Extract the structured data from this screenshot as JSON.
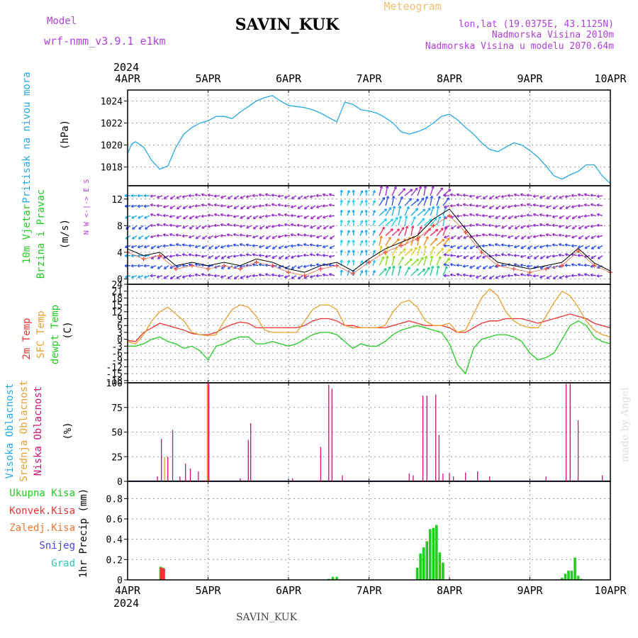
{
  "header": {
    "model_label": "Model",
    "model_value": "wrf-nmm_v3.9.1  e1km",
    "station_title": "SAVIN_KUK",
    "meteogram_label": "Meteogram",
    "coords": "lon,lat (19.0375E, 43.1125N)",
    "altitude": "Nadmorska Visina 2010m",
    "altitude_model": "Nadmorska Visina u modelu 2070.64m",
    "footer_station": "SAVIN_KUK",
    "watermark": "made by Angel"
  },
  "time_axis": {
    "year": "2024",
    "labels": [
      "4APR",
      "5APR",
      "6APR",
      "7APR",
      "8APR",
      "9APR",
      "10APR"
    ]
  },
  "colors": {
    "pressure": "#29a8e8",
    "temp2m": "#ee3333",
    "sfc": "#e8a030",
    "dewpt": "#22cc22",
    "high_cloud": "#22aaee",
    "mid_cloud": "#e8a030",
    "low_cloud": "#cc1177",
    "total_precip": "#22cc22",
    "conv_precip": "#ee3333",
    "frz_precip": "#ee7733",
    "snow": "#4444ee",
    "hail": "#22ccbb",
    "purple_text": "#b040e0",
    "orange_text": "#f0c070"
  },
  "chart_data": [
    {
      "type": "line",
      "panel": "pressure",
      "ylabel_lines": [
        "Pritisak  na  nivou  mora",
        "(hPa)"
      ],
      "yticks": [
        1018,
        1020,
        1022,
        1024
      ],
      "ylim": [
        1016.3,
        1025
      ],
      "x_days": [
        0,
        0.05,
        0.1,
        0.2,
        0.3,
        0.4,
        0.5,
        0.6,
        0.7,
        0.8,
        0.9,
        1.0,
        1.1,
        1.2,
        1.3,
        1.4,
        1.5,
        1.6,
        1.7,
        1.8,
        1.9,
        2.0,
        2.1,
        2.2,
        2.3,
        2.4,
        2.5,
        2.6,
        2.7,
        2.8,
        2.9,
        3.0,
        3.1,
        3.2,
        3.3,
        3.4,
        3.5,
        3.6,
        3.7,
        3.8,
        3.9,
        4.0,
        4.1,
        4.2,
        4.3,
        4.4,
        4.5,
        4.6,
        4.7,
        4.8,
        4.9,
        5.0,
        5.1,
        5.2,
        5.3,
        5.4,
        5.5,
        5.6,
        5.7,
        5.8,
        5.9,
        6.0
      ],
      "values": [
        1019.2,
        1020.1,
        1020.3,
        1019.8,
        1018.6,
        1017.8,
        1018.1,
        1019.8,
        1021.0,
        1021.6,
        1022.0,
        1022.2,
        1022.6,
        1022.6,
        1022.4,
        1023.0,
        1023.5,
        1024.0,
        1024.3,
        1024.5,
        1024.0,
        1023.6,
        1023.5,
        1023.4,
        1023.2,
        1022.9,
        1022.5,
        1022.1,
        1023.9,
        1023.7,
        1023.2,
        1023.1,
        1022.9,
        1022.5,
        1022.0,
        1021.2,
        1021.0,
        1021.2,
        1021.5,
        1022.0,
        1022.6,
        1022.8,
        1022.3,
        1021.6,
        1021.0,
        1020.2,
        1019.6,
        1019.4,
        1019.8,
        1020.2,
        1020.0,
        1019.5,
        1018.9,
        1018.1,
        1017.2,
        1016.9,
        1017.3,
        1017.6,
        1018.2,
        1018.2,
        1017.2,
        1016.5
      ]
    },
    {
      "type": "line",
      "panel": "wind",
      "ylabel_lines": [
        "10m  Vjetar",
        "Brzina  i  Pravac",
        "(m/s)"
      ],
      "compass_text": "N  W <-|-> E  S",
      "yticks": [
        0,
        4,
        8,
        12
      ],
      "ylim": [
        -0.8,
        14
      ],
      "x_days": [
        0,
        0.2,
        0.4,
        0.6,
        0.8,
        1.0,
        1.2,
        1.4,
        1.6,
        1.8,
        2.0,
        2.2,
        2.4,
        2.6,
        2.8,
        3.0,
        3.2,
        3.4,
        3.6,
        3.8,
        4.0,
        4.2,
        4.4,
        4.6,
        4.8,
        5.0,
        5.2,
        5.4,
        5.6,
        5.8,
        6.0
      ],
      "values": [
        4.0,
        3.0,
        3.5,
        1.5,
        2.0,
        1.5,
        2.0,
        1.5,
        2.5,
        2.0,
        1.0,
        0.5,
        1.5,
        2.0,
        0.8,
        2.5,
        4.0,
        5.0,
        6.0,
        8.0,
        9.5,
        7.0,
        4.0,
        2.0,
        1.5,
        1.0,
        1.5,
        2.0,
        4.2,
        2.0,
        1.0
      ],
      "gust_values": [
        4.5,
        3.5,
        4.0,
        2.0,
        2.5,
        2.0,
        2.5,
        2.0,
        3.0,
        2.5,
        1.5,
        1.0,
        2.0,
        2.5,
        1.2,
        3.0,
        4.5,
        5.5,
        6.5,
        9.0,
        10.5,
        7.5,
        4.5,
        2.5,
        2.0,
        1.5,
        2.0,
        2.5,
        4.6,
        2.4,
        1.2
      ]
    },
    {
      "type": "line",
      "panel": "temperature",
      "ylabel_lines": [
        "2m  Temp",
        "SFC  Temp",
        "dewpt  Temp",
        "(C)"
      ],
      "yticks": [
        -18,
        -15,
        -12,
        -9,
        -6,
        -3,
        0,
        3,
        6,
        9,
        12,
        15,
        18,
        21,
        24
      ],
      "ylim": [
        -19,
        24
      ],
      "x_days": [
        0,
        0.1,
        0.2,
        0.3,
        0.4,
        0.5,
        0.6,
        0.7,
        0.8,
        0.9,
        1.0,
        1.1,
        1.2,
        1.3,
        1.4,
        1.5,
        1.6,
        1.7,
        1.8,
        1.9,
        2.0,
        2.1,
        2.2,
        2.3,
        2.4,
        2.5,
        2.6,
        2.7,
        2.8,
        2.9,
        3.0,
        3.1,
        3.2,
        3.3,
        3.4,
        3.5,
        3.6,
        3.7,
        3.8,
        3.9,
        4.0,
        4.1,
        4.2,
        4.3,
        4.4,
        4.5,
        4.6,
        4.7,
        4.8,
        4.9,
        5.0,
        5.1,
        5.2,
        5.3,
        5.4,
        5.5,
        5.6,
        5.7,
        5.8,
        5.9,
        6.0
      ],
      "series": [
        {
          "name": "2m Temp",
          "color_key": "temp2m",
          "values": [
            -0.5,
            -1,
            3,
            5,
            7,
            6,
            5,
            4,
            2.5,
            2,
            2,
            3,
            5,
            6.5,
            7.5,
            7,
            5,
            5,
            5,
            5,
            5,
            5,
            6,
            8,
            9,
            9,
            8,
            6,
            6,
            5,
            5,
            5,
            5,
            6,
            7,
            8,
            7,
            6,
            6,
            6,
            5,
            3,
            3,
            5,
            7,
            8,
            8,
            9,
            9,
            9,
            8,
            7,
            8,
            9,
            10,
            11,
            10,
            9,
            7,
            6,
            5
          ]
        },
        {
          "name": "SFC Temp",
          "color_key": "sfc",
          "values": [
            -1,
            -2,
            2,
            8,
            12,
            14,
            11,
            8,
            3,
            2,
            1.5,
            2,
            8,
            13,
            15,
            14,
            10,
            4,
            3,
            3,
            3,
            3,
            8,
            13,
            15,
            15,
            13,
            6,
            5,
            5,
            5,
            5,
            6,
            12,
            16,
            17,
            14,
            8,
            6,
            6,
            7,
            3,
            4,
            11,
            18,
            22,
            19,
            12,
            8,
            6,
            5,
            5,
            10,
            16,
            21,
            19,
            14,
            8,
            4,
            2,
            1
          ]
        },
        {
          "name": "dewpt Temp",
          "color_key": "dewpt",
          "values": [
            -3,
            -3,
            -2,
            0,
            1,
            -1,
            -2,
            -4,
            -3,
            -5,
            -9,
            -3,
            -2,
            0,
            1,
            1,
            -2,
            -2,
            -1,
            -2,
            -3,
            -2,
            0,
            2,
            3,
            3,
            2,
            -1,
            -4,
            -2,
            -3,
            -3,
            -1,
            2,
            4,
            5,
            6,
            5,
            4,
            3,
            -2,
            -11,
            -15,
            -4,
            0,
            1,
            2,
            2,
            1,
            -1,
            -6,
            -9,
            -8,
            -6,
            0,
            6,
            8,
            6,
            1,
            -1,
            -2
          ]
        }
      ]
    },
    {
      "type": "bar",
      "panel": "clouds",
      "ylabel_lines": [
        "Visoka  Oblacnost",
        "Srednja  Oblacnost",
        "Niska  Oblacnost",
        "(%)"
      ],
      "yticks": [
        0,
        25,
        50,
        75,
        100
      ],
      "ylim": [
        0,
        100
      ],
      "series": [
        {
          "name": "Visoka Oblacnost",
          "color_key": "high_cloud",
          "x_days": [
            1.0
          ],
          "values": [
            99
          ]
        },
        {
          "name": "Srednja Oblacnost",
          "color_key": "mid_cloud",
          "x_days": [
            0.46,
            0.99
          ],
          "values": [
            25,
            99
          ]
        },
        {
          "name": "Niska Oblacnost",
          "color_key": "low_cloud",
          "x_days": [
            0.37,
            0.42,
            0.5,
            0.56,
            0.65,
            0.72,
            0.78,
            0.88,
            1.01,
            1.4,
            1.5,
            1.53,
            2.05,
            2.4,
            2.5,
            2.54,
            2.67,
            3.5,
            3.55,
            3.67,
            3.72,
            3.83,
            3.87,
            3.92,
            4.0,
            4.05,
            4.2,
            4.35,
            4.5,
            5.2,
            5.45,
            5.5,
            5.6,
            5.9
          ],
          "values": [
            5,
            43,
            25,
            52,
            5,
            18,
            13,
            10,
            99,
            3,
            42,
            59,
            3,
            35,
            98,
            94,
            6,
            8,
            6,
            87,
            87,
            88,
            47,
            8,
            8,
            5,
            9,
            10,
            5,
            5,
            99,
            99,
            62,
            6
          ]
        }
      ]
    },
    {
      "type": "bar",
      "panel": "precipitation",
      "ylabel_lines": [
        "1hr  Precip  (mm)"
      ],
      "legend": [
        "Ukupna  Kisa",
        "Konvek.Kisa",
        "Zaledj.Kisa",
        "Snijeg",
        "Grad"
      ],
      "yticks": [
        0,
        0.2,
        0.4,
        0.6,
        0.8
      ],
      "ylim": [
        0,
        0.97
      ],
      "series": [
        {
          "name": "Ukupna Kisa",
          "color_key": "total_precip",
          "x_days": [
            0.41,
            0.44,
            2.5,
            2.55,
            2.6,
            3.6,
            3.64,
            3.68,
            3.72,
            3.76,
            3.8,
            3.84,
            3.88,
            3.92,
            5.4,
            5.44,
            5.48,
            5.52,
            5.56,
            5.6,
            5.64
          ],
          "values": [
            0.13,
            0.12,
            0.01,
            0.03,
            0.03,
            0.12,
            0.26,
            0.32,
            0.38,
            0.5,
            0.51,
            0.54,
            0.27,
            0.17,
            0.02,
            0.06,
            0.09,
            0.09,
            0.22,
            0.04,
            0.01
          ]
        },
        {
          "name": "Konvek.Kisa",
          "color_key": "conv_precip",
          "x_days": [
            0.42,
            0.45
          ],
          "values": [
            0.12,
            0.11
          ]
        }
      ]
    }
  ]
}
